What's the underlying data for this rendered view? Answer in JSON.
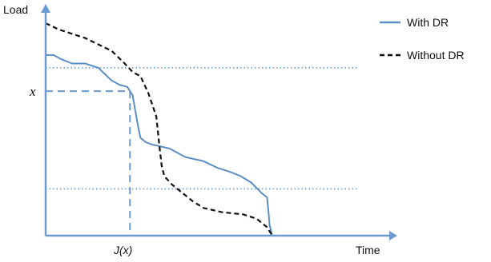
{
  "chart_data": {
    "type": "line",
    "ylabel": "Load",
    "xlabel": "Time",
    "y_marker_label": "x",
    "x_marker_label": "J(x)",
    "legend_position": "top-right",
    "x_range": [
      0,
      100
    ],
    "y_range": [
      0,
      100
    ],
    "reference_lines": [
      {
        "axis": "y",
        "value": 79,
        "style": "dotted"
      },
      {
        "axis": "y",
        "value": 22,
        "style": "dotted"
      }
    ],
    "marker": {
      "x": 32,
      "y": 68
    },
    "series": [
      {
        "name": "With DR",
        "style": "solid",
        "color": "#5b8ec4",
        "points": [
          [
            0,
            85
          ],
          [
            3,
            85
          ],
          [
            6,
            83
          ],
          [
            10,
            81
          ],
          [
            15,
            81
          ],
          [
            20,
            79
          ],
          [
            25,
            73
          ],
          [
            28,
            71
          ],
          [
            31,
            70
          ],
          [
            33,
            66
          ],
          [
            35,
            52
          ],
          [
            36,
            46
          ],
          [
            38,
            44
          ],
          [
            40,
            43
          ],
          [
            47,
            41
          ],
          [
            53,
            37
          ],
          [
            60,
            35
          ],
          [
            65,
            32
          ],
          [
            70,
            30
          ],
          [
            74,
            28
          ],
          [
            78,
            25
          ],
          [
            82,
            20
          ],
          [
            84,
            18
          ],
          [
            84.5,
            12
          ],
          [
            85,
            5
          ],
          [
            86,
            0
          ]
        ]
      },
      {
        "name": "Without DR",
        "style": "dashed",
        "color": "#111111",
        "points": [
          [
            0,
            100
          ],
          [
            5,
            97
          ],
          [
            10,
            95
          ],
          [
            15,
            93
          ],
          [
            20,
            90
          ],
          [
            25,
            87
          ],
          [
            30,
            81
          ],
          [
            33,
            77
          ],
          [
            36,
            75
          ],
          [
            39,
            67
          ],
          [
            42,
            56
          ],
          [
            43,
            44
          ],
          [
            44,
            33
          ],
          [
            45,
            28
          ],
          [
            48,
            24
          ],
          [
            52,
            20
          ],
          [
            56,
            16
          ],
          [
            60,
            13
          ],
          [
            67,
            11
          ],
          [
            75,
            10
          ],
          [
            80,
            8
          ],
          [
            84,
            4
          ],
          [
            86,
            0
          ]
        ]
      }
    ]
  },
  "colors": {
    "axis": "#6a9ad0",
    "reference": "#7aaad6",
    "with_dr": "#5b8ec4",
    "without_dr": "#111111"
  }
}
